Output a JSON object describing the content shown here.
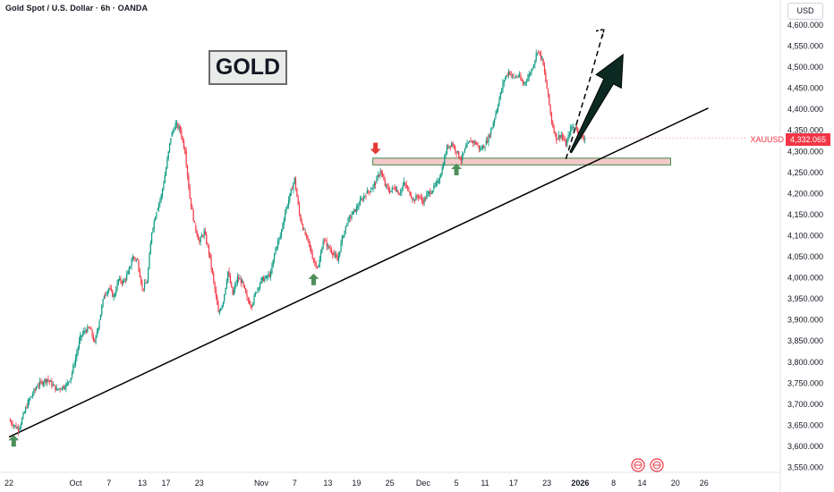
{
  "header": {
    "title": "Gold Spot / U.S. Dollar · 6h · OANDA"
  },
  "currency_button": "USD",
  "annotation_label": "GOLD",
  "price_tag": {
    "symbol": "XAUUSD",
    "value": "4,332.065"
  },
  "colors": {
    "up": "#089981",
    "down": "#f23645",
    "trendline": "#000000",
    "zone_fill": "#f3c4c6",
    "zone_border": "#2e7d32",
    "arrow_green": "#4f8f5b",
    "arrow_red": "#e53935",
    "projection_arrow": "#0d2a22"
  },
  "icons": [
    "arrow-up-icon",
    "arrow-down-icon",
    "event-flag-icon"
  ],
  "chart_data": {
    "type": "candlestick",
    "title": "Gold Spot / U.S. Dollar · 6h · OANDA",
    "xlabel": "",
    "ylabel": "",
    "ylim": [
      3550,
      4600
    ],
    "grid": false,
    "y_ticks": [
      "4,600.000",
      "4,550.000",
      "4,500.000",
      "4,450.000",
      "4,400.000",
      "4,350.000",
      "4,300.000",
      "4,250.000",
      "4,200.000",
      "4,150.000",
      "4,100.000",
      "4,050.000",
      "4,000.000",
      "3,950.000",
      "3,900.000",
      "3,850.000",
      "3,800.000",
      "3,750.000",
      "3,700.000",
      "3,650.000",
      "3,600.000",
      "3,550.000"
    ],
    "y_tick_values": [
      4600,
      4550,
      4500,
      4450,
      4400,
      4350,
      4300,
      4250,
      4200,
      4150,
      4100,
      4050,
      4000,
      3950,
      3900,
      3850,
      3800,
      3750,
      3700,
      3650,
      3600,
      3550
    ],
    "x_ticks": [
      "22",
      "Oct",
      "7",
      "13",
      "17",
      "23",
      "Nov",
      "7",
      "13",
      "19",
      "25",
      "Dec",
      "5",
      "11",
      "17",
      "23",
      "2026",
      "8",
      "14",
      "20",
      "26"
    ],
    "x_bold": [
      "2026"
    ],
    "x_tick_index": [
      0,
      14,
      21,
      28,
      33,
      40,
      53,
      60,
      67,
      73,
      80,
      87,
      94,
      100,
      106,
      113,
      120,
      127,
      133,
      140,
      146
    ],
    "price_path": [
      [
        0,
        3662
      ],
      [
        2,
        3640
      ],
      [
        4,
        3705
      ],
      [
        6,
        3745
      ],
      [
        8,
        3760
      ],
      [
        10,
        3735
      ],
      [
        12,
        3745
      ],
      [
        13,
        3765
      ],
      [
        14,
        3810
      ],
      [
        15,
        3860
      ],
      [
        16,
        3875
      ],
      [
        17,
        3880
      ],
      [
        18,
        3845
      ],
      [
        19,
        3900
      ],
      [
        20,
        3960
      ],
      [
        21,
        3975
      ],
      [
        22,
        3955
      ],
      [
        23,
        3995
      ],
      [
        24,
        3990
      ],
      [
        25,
        4010
      ],
      [
        26,
        4050
      ],
      [
        27,
        4040
      ],
      [
        28,
        3975
      ],
      [
        29,
        3990
      ],
      [
        30,
        4110
      ],
      [
        31,
        4160
      ],
      [
        32,
        4195
      ],
      [
        33,
        4260
      ],
      [
        34,
        4335
      ],
      [
        35,
        4365
      ],
      [
        36,
        4350
      ],
      [
        37,
        4300
      ],
      [
        38,
        4190
      ],
      [
        39,
        4125
      ],
      [
        40,
        4085
      ],
      [
        41,
        4110
      ],
      [
        42,
        4060
      ],
      [
        43,
        3990
      ],
      [
        44,
        3915
      ],
      [
        45,
        3945
      ],
      [
        46,
        4015
      ],
      [
        47,
        3960
      ],
      [
        48,
        4000
      ],
      [
        49,
        3990
      ],
      [
        50,
        3950
      ],
      [
        51,
        3935
      ],
      [
        52,
        3970
      ],
      [
        53,
        3995
      ],
      [
        54,
        4000
      ],
      [
        55,
        4010
      ],
      [
        56,
        4070
      ],
      [
        57,
        4100
      ],
      [
        58,
        4155
      ],
      [
        59,
        4195
      ],
      [
        60,
        4235
      ],
      [
        61,
        4150
      ],
      [
        62,
        4110
      ],
      [
        63,
        4080
      ],
      [
        64,
        4040
      ],
      [
        65,
        4025
      ],
      [
        66,
        4090
      ],
      [
        67,
        4075
      ],
      [
        68,
        4060
      ],
      [
        69,
        4040
      ],
      [
        70,
        4095
      ],
      [
        71,
        4130
      ],
      [
        72,
        4150
      ],
      [
        73,
        4165
      ],
      [
        74,
        4185
      ],
      [
        75,
        4200
      ],
      [
        76,
        4210
      ],
      [
        77,
        4225
      ],
      [
        78,
        4255
      ],
      [
        79,
        4220
      ],
      [
        80,
        4205
      ],
      [
        81,
        4215
      ],
      [
        82,
        4200
      ],
      [
        83,
        4225
      ],
      [
        84,
        4205
      ],
      [
        85,
        4185
      ],
      [
        86,
        4195
      ],
      [
        87,
        4180
      ],
      [
        88,
        4200
      ],
      [
        89,
        4210
      ],
      [
        90,
        4225
      ],
      [
        91,
        4260
      ],
      [
        92,
        4310
      ],
      [
        93,
        4320
      ],
      [
        94,
        4300
      ],
      [
        95,
        4280
      ],
      [
        96,
        4310
      ],
      [
        97,
        4325
      ],
      [
        98,
        4320
      ],
      [
        99,
        4305
      ],
      [
        100,
        4315
      ],
      [
        101,
        4340
      ],
      [
        102,
        4380
      ],
      [
        103,
        4425
      ],
      [
        104,
        4470
      ],
      [
        105,
        4490
      ],
      [
        106,
        4475
      ],
      [
        107,
        4480
      ],
      [
        108,
        4460
      ],
      [
        109,
        4475
      ],
      [
        110,
        4500
      ],
      [
        111,
        4540
      ],
      [
        112,
        4520
      ],
      [
        113,
        4450
      ],
      [
        114,
        4370
      ],
      [
        115,
        4330
      ],
      [
        116,
        4340
      ],
      [
        117,
        4315
      ],
      [
        118,
        4355
      ],
      [
        119,
        4360
      ],
      [
        120,
        4335
      ],
      [
        121,
        4332
      ]
    ],
    "trendline": [
      [
        0,
        3622
      ],
      [
        136,
        4345
      ]
    ],
    "resistance_zone": [
      4268,
      4284
    ],
    "markers": [
      {
        "type": "arrow-up",
        "index": 1,
        "price": 3612
      },
      {
        "type": "arrow-up",
        "index": 64,
        "price": 3995
      },
      {
        "type": "arrow-up",
        "index": 94,
        "price": 4256
      },
      {
        "type": "arrow-down",
        "index": 77,
        "price": 4308
      }
    ],
    "projection": {
      "dashed": [
        [
          117,
          4282
        ],
        [
          122,
          4470
        ],
        [
          125,
          4590
        ]
      ],
      "arrow_from": [
        118,
        4298
      ],
      "arrow_to": [
        129,
        4530
      ]
    }
  }
}
